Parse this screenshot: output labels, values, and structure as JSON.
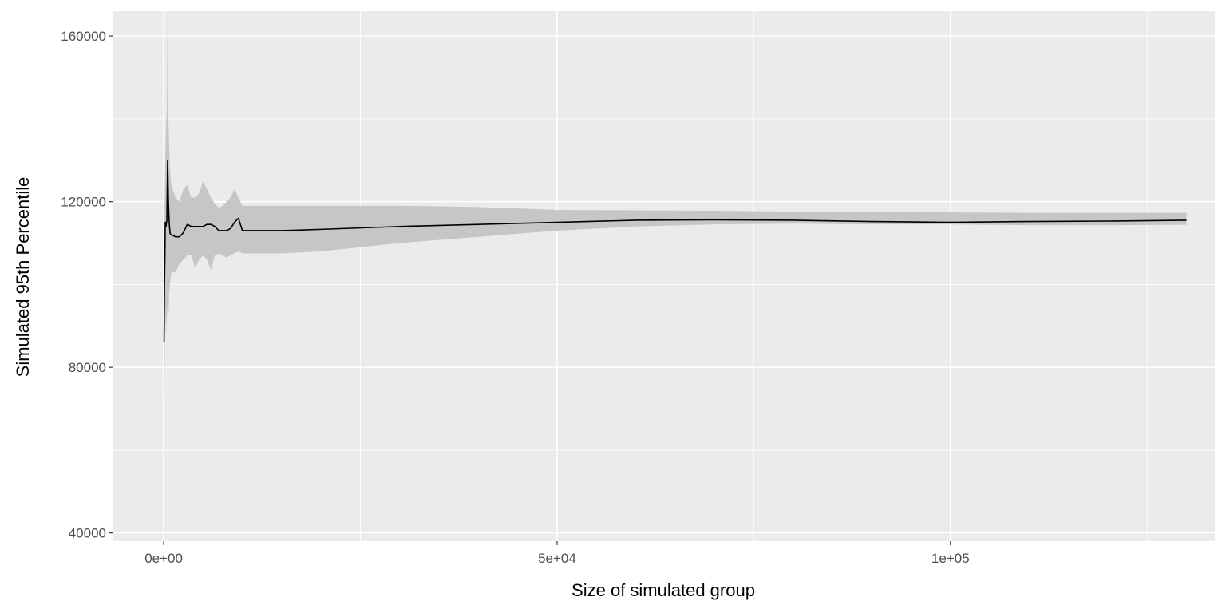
{
  "chart_data": {
    "type": "area",
    "xlabel": "Size of simulated group",
    "ylabel": "Simulated 95th Percentile",
    "xlim": [
      -6400,
      133600
    ],
    "ylim": [
      38000,
      166000
    ],
    "x_ticks": [
      {
        "value": 0,
        "label": "0e+00"
      },
      {
        "value": 50000,
        "label": "5e+04"
      },
      {
        "value": 100000,
        "label": "1e+05"
      }
    ],
    "y_ticks": [
      {
        "value": 40000,
        "label": "40000"
      },
      {
        "value": 80000,
        "label": "80000"
      },
      {
        "value": 120000,
        "label": "120000"
      },
      {
        "value": 160000,
        "label": "160000"
      }
    ],
    "x_minor_ticks": [
      25000,
      75000,
      125000
    ],
    "y_minor_ticks": [
      60000,
      100000,
      140000
    ],
    "grid": true,
    "colors": {
      "panel": "#ebebeb",
      "grid": "#ffffff",
      "band": "#c6c6c6",
      "line": "#000000"
    },
    "series": [
      {
        "x": [
          50,
          100,
          150,
          200,
          300,
          400,
          500,
          600,
          700,
          800,
          900,
          1000,
          1500,
          2000,
          2500,
          3000,
          3500,
          4000,
          4500,
          5000,
          5500,
          6000,
          6500,
          7000,
          7500,
          8000,
          8500,
          9000,
          9500,
          10000,
          15000,
          20000,
          30000,
          40000,
          50000,
          60000,
          70000,
          80000,
          90000,
          100000,
          110000,
          120000,
          130000
        ],
        "values": [
          86000,
          100000,
          106000,
          115000,
          114000,
          115500,
          130000,
          120000,
          115000,
          112500,
          112000,
          112000,
          111500,
          111500,
          112500,
          114500,
          114000,
          114000,
          114000,
          114000,
          114500,
          114500,
          114000,
          113000,
          113000,
          113000,
          113500,
          115000,
          116000,
          113000,
          113000,
          113300,
          114000,
          114500,
          115000,
          115500,
          115600,
          115500,
          115200,
          115000,
          115200,
          115300,
          115500
        ],
        "upper": [
          104000,
          118000,
          124000,
          130000,
          138000,
          142000,
          166000,
          140000,
          133000,
          128000,
          125000,
          124000,
          121000,
          120000,
          123000,
          124000,
          121000,
          121000,
          122000,
          125000,
          123000,
          121000,
          119500,
          118500,
          119000,
          120000,
          121000,
          123000,
          121000,
          119000,
          119000,
          119000,
          119000,
          118700,
          118000,
          117900,
          117800,
          117600,
          117500,
          117400,
          117300,
          117300,
          117300
        ],
        "lower": [
          44000,
          77000,
          86000,
          94000,
          88000,
          92000,
          95000,
          92000,
          98000,
          100000,
          102000,
          103000,
          103000,
          105000,
          106000,
          107000,
          107000,
          104000,
          106000,
          107000,
          106000,
          103500,
          107000,
          107500,
          107000,
          106500,
          107000,
          107500,
          108000,
          107500,
          107500,
          108000,
          110000,
          111500,
          113000,
          114000,
          114500,
          114700,
          114500,
          114500,
          114300,
          114300,
          114400
        ]
      }
    ]
  }
}
